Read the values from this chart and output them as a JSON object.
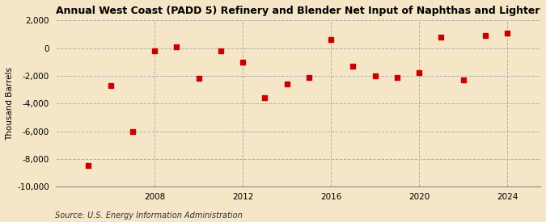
{
  "title": "Annual West Coast (PADD 5) Refinery and Blender Net Input of Naphthas and Lighter",
  "ylabel": "Thousand Barrels",
  "source": "Source: U.S. Energy Information Administration",
  "years": [
    2005,
    2006,
    2007,
    2008,
    2009,
    2010,
    2011,
    2012,
    2013,
    2014,
    2015,
    2016,
    2017,
    2018,
    2019,
    2020,
    2021,
    2022,
    2023,
    2024
  ],
  "values": [
    -8500,
    -2700,
    -6000,
    -200,
    100,
    -2200,
    -200,
    -1000,
    -3600,
    -2600,
    -2100,
    600,
    -1300,
    -2000,
    -2100,
    -1800,
    800,
    -2300,
    900,
    1100
  ],
  "marker_color": "#cc0000",
  "background_color": "#f5e6c8",
  "grid_color": "#b0b0b0",
  "ylim": [
    -10000,
    2000
  ],
  "yticks": [
    -10000,
    -8000,
    -6000,
    -4000,
    -2000,
    0,
    2000
  ],
  "xticks": [
    2008,
    2012,
    2016,
    2020,
    2024
  ],
  "xlim": [
    2003.5,
    2025.5
  ],
  "title_fontsize": 9,
  "axis_fontsize": 7.5,
  "source_fontsize": 7
}
